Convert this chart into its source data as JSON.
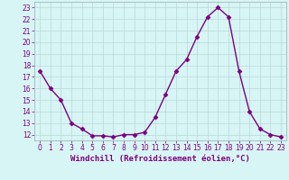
{
  "x": [
    0,
    1,
    2,
    3,
    4,
    5,
    6,
    7,
    8,
    9,
    10,
    11,
    12,
    13,
    14,
    15,
    16,
    17,
    18,
    19,
    20,
    21,
    22,
    23
  ],
  "y": [
    17.5,
    16.0,
    15.0,
    13.0,
    12.5,
    11.9,
    11.9,
    11.8,
    12.0,
    12.0,
    12.2,
    13.5,
    15.5,
    17.5,
    18.5,
    20.5,
    22.2,
    23.0,
    22.2,
    17.5,
    14.0,
    12.5,
    12.0,
    11.8
  ],
  "line_color": "#7b0080",
  "marker": "D",
  "marker_size": 2.5,
  "bg_color": "#d8f5f5",
  "grid_color": "#b8d8d8",
  "xlabel": "Windchill (Refroidissement éolien,°C)",
  "ylim": [
    11.5,
    23.5
  ],
  "xlim": [
    -0.5,
    23.5
  ],
  "yticks": [
    12,
    13,
    14,
    15,
    16,
    17,
    18,
    19,
    20,
    21,
    22,
    23
  ],
  "xticks": [
    0,
    1,
    2,
    3,
    4,
    5,
    6,
    7,
    8,
    9,
    10,
    11,
    12,
    13,
    14,
    15,
    16,
    17,
    18,
    19,
    20,
    21,
    22,
    23
  ],
  "tick_fontsize": 5.5,
  "xlabel_fontsize": 6.5,
  "spine_color": "#a0b8b8"
}
